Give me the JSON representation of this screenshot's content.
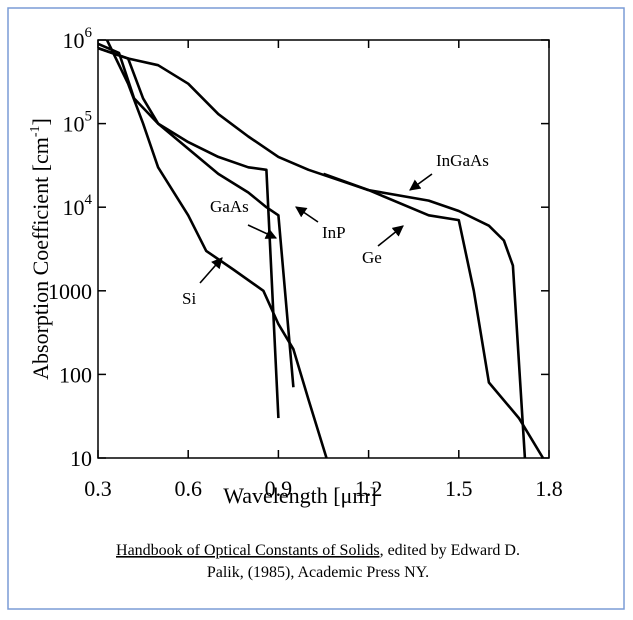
{
  "chart_data": {
    "type": "line",
    "y_label": "Absorption Coefficient [cm",
    "y_label_sup": "-1",
    "y_label_end": "]",
    "x_label": "Wavelength [μm]",
    "log_y": true,
    "xlim": [
      0.3,
      1.8
    ],
    "ylim": [
      10,
      1000000
    ],
    "xticks": [
      0.3,
      0.6,
      0.9,
      1.2,
      1.5,
      1.8
    ],
    "yticks": [
      {
        "value": 1000000,
        "label": "10",
        "exponent": "6"
      },
      {
        "value": 100000,
        "label": "10",
        "exponent": "5"
      },
      {
        "value": 10000,
        "label": "10",
        "exponent": "4"
      },
      1000,
      100,
      10
    ],
    "series": [
      {
        "name": "Si",
        "color": "#000000",
        "x": [
          0.33,
          0.4,
          0.45,
          0.5,
          0.6,
          0.66,
          0.75,
          0.85,
          0.9,
          0.95,
          1.0,
          1.06
        ],
        "values": [
          1000000,
          300000,
          100000,
          30000,
          8000,
          3000,
          1800,
          1000,
          400,
          200,
          50,
          10
        ]
      },
      {
        "name": "GaAs",
        "color": "#000000",
        "x": [
          0.3,
          0.4,
          0.45,
          0.5,
          0.6,
          0.7,
          0.8,
          0.86,
          0.9
        ],
        "values": [
          800000,
          600000,
          200000,
          100000,
          60000,
          40000,
          30000,
          28000,
          30
        ]
      },
      {
        "name": "InP",
        "color": "#000000",
        "x": [
          0.3,
          0.37,
          0.42,
          0.5,
          0.6,
          0.7,
          0.8,
          0.86,
          0.9,
          0.95
        ],
        "values": [
          900000,
          700000,
          200000,
          100000,
          50000,
          25000,
          15000,
          10000,
          8000,
          70
        ]
      },
      {
        "name": "Ge",
        "color": "#000000",
        "x": [
          0.3,
          0.4,
          0.5,
          0.6,
          0.7,
          0.8,
          0.9,
          1.0,
          1.2,
          1.4,
          1.5,
          1.55,
          1.6,
          1.7,
          1.78
        ],
        "values": [
          800000,
          600000,
          500000,
          300000,
          130000,
          70000,
          40000,
          28000,
          16000,
          8000,
          7000,
          1000,
          80,
          30,
          10
        ]
      },
      {
        "name": "InGaAs",
        "color": "#000000",
        "x": [
          1.05,
          1.2,
          1.4,
          1.5,
          1.6,
          1.65,
          1.68,
          1.72
        ],
        "values": [
          25000,
          16000,
          12000,
          9000,
          6000,
          4000,
          2000,
          10
        ]
      }
    ],
    "caption_title": "Handbook of Optical Constants of Solids",
    "caption_rest": ", edited by Edward D.",
    "caption_line2": "Palik, (1985), Academic Press NY."
  }
}
